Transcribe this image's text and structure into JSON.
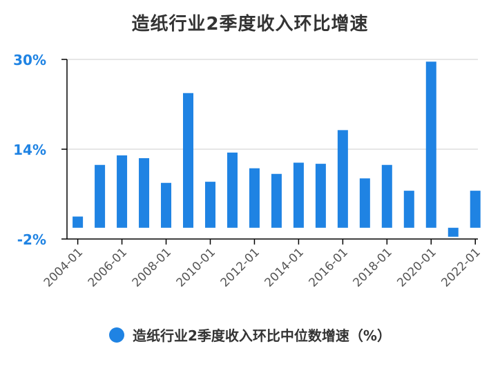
{
  "title": "造纸行业2季度收入环比增速",
  "legend_label": "造纸行业2季度收入环比中位数增速（%）",
  "colors": {
    "bar": "#1f83e3",
    "axis_label": "#1f83e3",
    "tick_label": "#555555",
    "grid": "#dddddd",
    "axis": "#000000"
  },
  "chart_data": {
    "type": "bar",
    "title": "造纸行业2季度收入环比增速",
    "xlabel": "",
    "ylabel": "",
    "ylim": [
      -2,
      30
    ],
    "y_ticks": [
      -2,
      14,
      30
    ],
    "y_tick_labels": [
      "-2%",
      "14%",
      "30%"
    ],
    "categories": [
      "2004-01",
      "2005-01",
      "2006-01",
      "2007-01",
      "2008-01",
      "2009-01",
      "2010-01",
      "2011-01",
      "2012-01",
      "2013-01",
      "2014-01",
      "2015-01",
      "2016-01",
      "2017-01",
      "2018-01",
      "2019-01",
      "2020-01",
      "2021-01",
      "2022-01"
    ],
    "x_tick_labels": [
      "2004-01",
      "2006-01",
      "2008-01",
      "2010-01",
      "2012-01",
      "2014-01",
      "2016-01",
      "2018-01",
      "2020-01",
      "2022-01"
    ],
    "series": [
      {
        "name": "造纸行业2季度收入环比中位数增速（%）",
        "values": [
          2.0,
          11.2,
          12.9,
          12.4,
          8.0,
          24.0,
          8.2,
          13.4,
          10.6,
          9.6,
          11.6,
          11.4,
          17.4,
          8.8,
          11.2,
          6.6,
          29.6,
          -1.6,
          6.6
        ]
      }
    ],
    "grid": true,
    "legend_position": "bottom"
  }
}
